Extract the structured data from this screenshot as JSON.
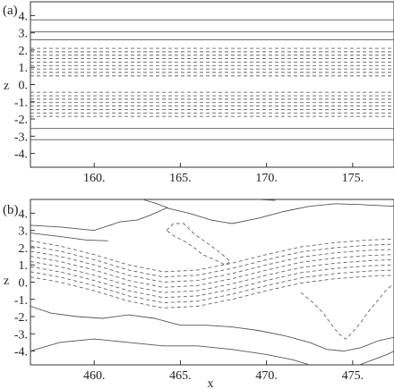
{
  "chart_data": [
    {
      "type": "contour",
      "panel_label": "(a)",
      "xlabel": "",
      "ylabel": "z",
      "xlim": [
        156.3,
        177.4
      ],
      "ylim": [
        -4.8,
        4.8
      ],
      "xticks": [
        160,
        165,
        170,
        175
      ],
      "xtick_labels": [
        "160.",
        "165.",
        "170.",
        "175."
      ],
      "yticks": [
        -4,
        -3,
        -2,
        -1,
        0,
        1,
        2,
        3,
        4
      ],
      "ytick_labels": [
        "-4.",
        "-3.",
        "-2.",
        "-1.",
        "0.",
        "1.",
        "2.",
        "3.",
        "4."
      ],
      "solid_levels_z": [
        3.75,
        3.05,
        2.6,
        -2.55,
        -3.2
      ],
      "dashed_levels_z": [
        2.1,
        1.9,
        1.7,
        1.5,
        1.3,
        1.1,
        0.9,
        0.7,
        0.5,
        -0.45,
        -0.65,
        -0.85,
        -1.05,
        -1.25,
        -1.45,
        -1.65,
        -1.85
      ]
    },
    {
      "type": "contour",
      "panel_label": "(b)",
      "xlabel": "x",
      "ylabel": "z",
      "xlim": [
        456.3,
        477.4
      ],
      "ylim": [
        -4.8,
        4.8
      ],
      "xticks": [
        460,
        465,
        470,
        475
      ],
      "xtick_labels": [
        "460.",
        "465.",
        "470.",
        "475."
      ],
      "yticks": [
        -4,
        -3,
        -2,
        -1,
        0,
        1,
        2,
        3,
        4
      ],
      "ytick_labels": [
        "-4.",
        "-3.",
        "-2.",
        "-1.",
        "0.",
        "1.",
        "2.",
        "3.",
        "4."
      ],
      "contours": [
        {
          "style": "solid",
          "points": [
            [
              456.3,
              3.3
            ],
            [
              458,
              3.2
            ],
            [
              460,
              3.0
            ],
            [
              461.5,
              3.5
            ],
            [
              462.5,
              3.6
            ],
            [
              463.3,
              3.9
            ],
            [
              464.2,
              4.3
            ],
            [
              465.5,
              4.0
            ],
            [
              466.8,
              3.6
            ],
            [
              468,
              3.4
            ],
            [
              469.5,
              3.7
            ],
            [
              471,
              4.1
            ],
            [
              472.5,
              4.4
            ],
            [
              474,
              4.55
            ],
            [
              475.5,
              4.5
            ],
            [
              477.4,
              4.4
            ]
          ]
        },
        {
          "style": "solid",
          "points": [
            [
              456.3,
              2.85
            ],
            [
              458,
              2.65
            ],
            [
              459.5,
              2.45
            ],
            [
              460.8,
              2.4
            ]
          ]
        },
        {
          "style": "solid",
          "points": [
            [
              462.8,
              4.8
            ],
            [
              463.5,
              4.6
            ],
            [
              464.3,
              4.3
            ]
          ]
        },
        {
          "style": "solid",
          "points": [
            [
              469.5,
              4.8
            ],
            [
              470.5,
              4.75
            ]
          ]
        },
        {
          "style": "dashed",
          "points": [
            [
              456.3,
              2.4
            ],
            [
              458,
              2.1
            ],
            [
              460,
              1.6
            ],
            [
              462,
              1.0
            ],
            [
              464,
              0.6
            ],
            [
              466,
              0.7
            ],
            [
              468,
              1.1
            ],
            [
              470,
              1.6
            ],
            [
              472,
              2.05
            ],
            [
              474,
              2.3
            ],
            [
              476,
              2.45
            ],
            [
              477.4,
              2.5
            ]
          ]
        },
        {
          "style": "dashed",
          "points": [
            [
              456.3,
              2.1
            ],
            [
              458,
              1.8
            ],
            [
              460,
              1.3
            ],
            [
              462,
              0.7
            ],
            [
              464,
              0.3
            ],
            [
              466,
              0.4
            ],
            [
              468,
              0.8
            ],
            [
              470,
              1.3
            ],
            [
              472,
              1.75
            ],
            [
              474,
              2.0
            ],
            [
              476,
              2.15
            ],
            [
              477.4,
              2.2
            ]
          ]
        },
        {
          "style": "dashed",
          "points": [
            [
              456.3,
              1.8
            ],
            [
              458,
              1.5
            ],
            [
              460,
              1.0
            ],
            [
              462,
              0.4
            ],
            [
              464,
              0.0
            ],
            [
              466,
              0.1
            ],
            [
              468,
              0.5
            ],
            [
              470,
              1.0
            ],
            [
              472,
              1.45
            ],
            [
              474,
              1.7
            ],
            [
              476,
              1.85
            ],
            [
              477.4,
              1.9
            ]
          ]
        },
        {
          "style": "dashed",
          "points": [
            [
              456.3,
              1.5
            ],
            [
              458,
              1.2
            ],
            [
              460,
              0.7
            ],
            [
              462,
              0.1
            ],
            [
              464,
              -0.3
            ],
            [
              466,
              -0.2
            ],
            [
              468,
              0.2
            ],
            [
              470,
              0.7
            ],
            [
              472,
              1.15
            ],
            [
              474,
              1.4
            ],
            [
              476,
              1.55
            ],
            [
              477.4,
              1.6
            ]
          ]
        },
        {
          "style": "dashed",
          "points": [
            [
              456.3,
              1.2
            ],
            [
              458,
              0.9
            ],
            [
              460,
              0.4
            ],
            [
              462,
              -0.2
            ],
            [
              464,
              -0.6
            ],
            [
              466,
              -0.5
            ],
            [
              468,
              -0.1
            ],
            [
              470,
              0.4
            ],
            [
              472,
              0.85
            ],
            [
              474,
              1.1
            ],
            [
              476,
              1.25
            ],
            [
              477.4,
              1.3
            ]
          ]
        },
        {
          "style": "dashed",
          "points": [
            [
              456.3,
              0.9
            ],
            [
              458,
              0.6
            ],
            [
              460,
              0.1
            ],
            [
              462,
              -0.5
            ],
            [
              464,
              -0.9
            ],
            [
              466,
              -0.8
            ],
            [
              468,
              -0.4
            ],
            [
              470,
              0.1
            ],
            [
              472,
              0.55
            ],
            [
              474,
              0.8
            ],
            [
              476,
              0.95
            ],
            [
              477.4,
              1.0
            ]
          ]
        },
        {
          "style": "dashed",
          "points": [
            [
              456.3,
              0.6
            ],
            [
              458,
              0.3
            ],
            [
              460,
              -0.2
            ],
            [
              462,
              -0.8
            ],
            [
              464,
              -1.2
            ],
            [
              466,
              -1.1
            ],
            [
              468,
              -0.7
            ],
            [
              470,
              -0.2
            ],
            [
              472,
              0.25
            ],
            [
              474,
              0.5
            ],
            [
              476,
              0.65
            ],
            [
              477.4,
              0.7
            ]
          ]
        },
        {
          "style": "dashed",
          "points": [
            [
              456.3,
              0.3
            ],
            [
              458,
              0.0
            ],
            [
              460,
              -0.5
            ],
            [
              462,
              -1.1
            ],
            [
              464,
              -1.5
            ],
            [
              466,
              -1.4
            ],
            [
              468,
              -1.0
            ],
            [
              470,
              -0.5
            ],
            [
              472,
              -0.05
            ],
            [
              474,
              0.2
            ],
            [
              476,
              0.35
            ],
            [
              477.4,
              0.4
            ]
          ]
        },
        {
          "style": "dashed",
          "points": [
            [
              464.2,
              3.0
            ],
            [
              464.6,
              3.4
            ],
            [
              465.2,
              3.4
            ],
            [
              465.8,
              2.8
            ],
            [
              466.5,
              2.3
            ],
            [
              467.2,
              1.8
            ],
            [
              467.9,
              1.2
            ],
            [
              467.6,
              1.0
            ],
            [
              467.0,
              1.3
            ],
            [
              466.3,
              1.6
            ],
            [
              465.8,
              2.0
            ],
            [
              465.2,
              2.4
            ],
            [
              464.6,
              2.7
            ],
            [
              464.2,
              3.0
            ]
          ]
        },
        {
          "style": "dashed",
          "points": [
            [
              472.0,
              -0.6
            ],
            [
              472.7,
              -1.2
            ],
            [
              473.3,
              -1.8
            ],
            [
              473.8,
              -2.5
            ],
            [
              474.2,
              -3.0
            ],
            [
              474.6,
              -3.3
            ],
            [
              475.0,
              -2.9
            ],
            [
              475.5,
              -2.3
            ],
            [
              476.0,
              -1.6
            ],
            [
              476.6,
              -0.9
            ],
            [
              477.0,
              -0.4
            ],
            [
              477.4,
              -0.1
            ]
          ]
        },
        {
          "style": "solid",
          "points": [
            [
              456.3,
              -1.4
            ],
            [
              457.5,
              -1.8
            ],
            [
              459,
              -2.0
            ],
            [
              460.5,
              -2.1
            ],
            [
              462,
              -1.9
            ],
            [
              463.5,
              -2.1
            ],
            [
              465,
              -2.5
            ],
            [
              466.5,
              -2.5
            ],
            [
              468,
              -2.6
            ],
            [
              469.5,
              -2.8
            ],
            [
              471,
              -3.1
            ],
            [
              472.5,
              -3.5
            ],
            [
              473.5,
              -3.9
            ],
            [
              474.5,
              -4.0
            ],
            [
              475.5,
              -3.8
            ],
            [
              476.5,
              -3.4
            ],
            [
              477.4,
              -3.2
            ]
          ]
        },
        {
          "style": "solid",
          "points": [
            [
              456.3,
              -4.0
            ],
            [
              458,
              -3.5
            ],
            [
              460,
              -3.3
            ],
            [
              462,
              -3.5
            ],
            [
              464,
              -3.7
            ],
            [
              466,
              -3.7
            ],
            [
              468,
              -3.9
            ],
            [
              470,
              -4.2
            ],
            [
              471.5,
              -4.5
            ],
            [
              472.5,
              -4.8
            ]
          ]
        },
        {
          "style": "solid",
          "points": [
            [
              475.4,
              -4.8
            ],
            [
              476.2,
              -4.5
            ],
            [
              477.0,
              -4.2
            ],
            [
              477.4,
              -4.0
            ]
          ]
        }
      ]
    }
  ]
}
